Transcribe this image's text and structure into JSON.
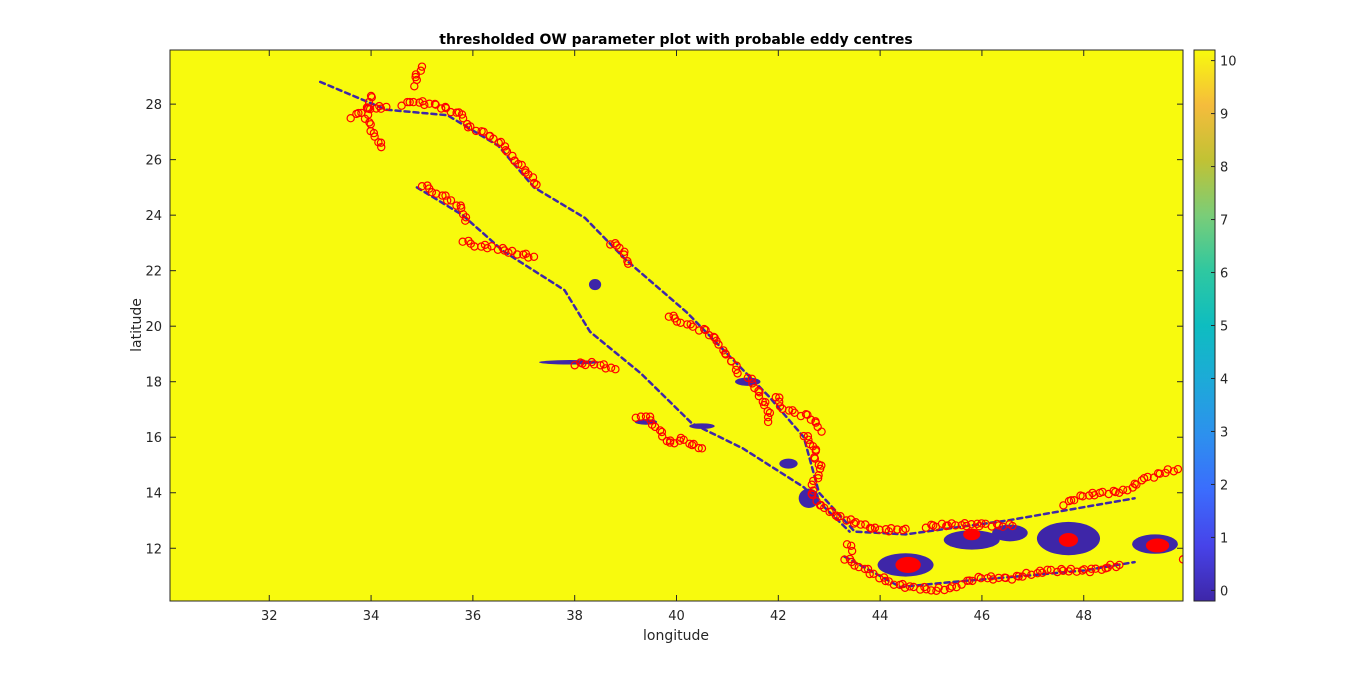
{
  "chart_data": {
    "type": "heatmap",
    "title": "thresholded OW parameter plot with probable eddy centres",
    "xlabel": "longitude",
    "ylabel": "latitude",
    "xlim": [
      30.05,
      49.95
    ],
    "ylim": [
      10.1,
      29.95
    ],
    "xticks": [
      32,
      34,
      36,
      38,
      40,
      42,
      44,
      46,
      48
    ],
    "yticks": [
      12,
      14,
      16,
      18,
      20,
      22,
      24,
      26,
      28
    ],
    "background_value": 10,
    "feature_value": 0,
    "colorbar": {
      "colormap": "parula",
      "clim": [
        -0.2,
        10.2
      ],
      "ticks": [
        0,
        1,
        2,
        3,
        4,
        5,
        6,
        7,
        8,
        9,
        10
      ]
    },
    "colors": {
      "background": "#f8fa0d",
      "feature": "#3e26a8",
      "eddy_centre_marker": "#ff0000"
    },
    "marker": "circle",
    "feature_blobs": [
      {
        "lon": 44.5,
        "lat": 11.4,
        "rx": 0.55,
        "ry": 0.42
      },
      {
        "lon": 45.8,
        "lat": 12.3,
        "rx": 0.55,
        "ry": 0.35
      },
      {
        "lon": 46.55,
        "lat": 12.55,
        "rx": 0.35,
        "ry": 0.3
      },
      {
        "lon": 47.7,
        "lat": 12.35,
        "rx": 0.62,
        "ry": 0.6
      },
      {
        "lon": 49.4,
        "lat": 12.15,
        "rx": 0.45,
        "ry": 0.35
      },
      {
        "lon": 42.2,
        "lat": 15.05,
        "rx": 0.18,
        "ry": 0.18
      },
      {
        "lon": 39.4,
        "lat": 16.55,
        "rx": 0.22,
        "ry": 0.1
      },
      {
        "lon": 40.5,
        "lat": 16.4,
        "rx": 0.25,
        "ry": 0.1
      },
      {
        "lon": 38.4,
        "lat": 21.5,
        "rx": 0.12,
        "ry": 0.2
      },
      {
        "lon": 37.9,
        "lat": 18.7,
        "rx": 0.6,
        "ry": 0.08
      },
      {
        "lon": 41.4,
        "lat": 18.0,
        "rx": 0.25,
        "ry": 0.15
      },
      {
        "lon": 42.6,
        "lat": 13.8,
        "rx": 0.2,
        "ry": 0.35
      }
    ],
    "feature_lines": [
      {
        "points": [
          [
            33.0,
            28.8
          ],
          [
            34.3,
            27.8
          ],
          [
            35.5,
            27.6
          ],
          [
            36.5,
            26.5
          ],
          [
            37.2,
            25.0
          ],
          [
            38.2,
            23.9
          ],
          [
            39.0,
            22.4
          ],
          [
            40.2,
            20.5
          ],
          [
            41.0,
            19.0
          ],
          [
            41.8,
            17.5
          ],
          [
            42.5,
            16.0
          ],
          [
            42.8,
            14.0
          ],
          [
            43.5,
            12.6
          ],
          [
            44.5,
            12.5
          ],
          [
            46.5,
            13.0
          ],
          [
            49.0,
            13.8
          ]
        ]
      },
      {
        "points": [
          [
            34.9,
            25.0
          ],
          [
            35.8,
            24.0
          ],
          [
            36.6,
            22.7
          ],
          [
            37.8,
            21.3
          ],
          [
            38.3,
            19.8
          ],
          [
            39.3,
            18.3
          ],
          [
            40.3,
            16.5
          ],
          [
            41.3,
            15.6
          ],
          [
            42.5,
            14.2
          ],
          [
            43.4,
            12.6
          ]
        ]
      },
      {
        "points": [
          [
            43.3,
            11.7
          ],
          [
            44.4,
            10.6
          ],
          [
            45.5,
            10.8
          ],
          [
            46.8,
            11.0
          ],
          [
            48.0,
            11.2
          ],
          [
            49.0,
            11.5
          ]
        ]
      }
    ],
    "eddy_centre_tracks": [
      {
        "points": [
          [
            34.0,
            28.35
          ],
          [
            33.9,
            27.5
          ],
          [
            34.1,
            26.8
          ],
          [
            34.2,
            26.45
          ]
        ]
      },
      {
        "points": [
          [
            33.6,
            27.55
          ],
          [
            34.0,
            27.85
          ],
          [
            34.3,
            27.9
          ]
        ]
      },
      {
        "points": [
          [
            34.6,
            28.0
          ],
          [
            34.85,
            28.1
          ],
          [
            35.3,
            27.95
          ],
          [
            35.5,
            27.8
          ],
          [
            35.8,
            27.6
          ],
          [
            35.9,
            27.2
          ],
          [
            36.3,
            26.9
          ],
          [
            36.6,
            26.5
          ],
          [
            36.75,
            26.1
          ],
          [
            36.95,
            25.75
          ],
          [
            37.1,
            25.45
          ],
          [
            37.25,
            25.1
          ]
        ]
      },
      {
        "points": [
          [
            34.85,
            28.7
          ],
          [
            34.9,
            29.1
          ],
          [
            35.0,
            29.35
          ]
        ]
      },
      {
        "points": [
          [
            35.0,
            25.1
          ],
          [
            35.3,
            24.8
          ],
          [
            35.6,
            24.5
          ],
          [
            35.8,
            24.2
          ],
          [
            35.85,
            23.8
          ]
        ]
      },
      {
        "points": [
          [
            35.8,
            23.1
          ],
          [
            36.05,
            22.9
          ],
          [
            36.4,
            22.85
          ],
          [
            36.8,
            22.65
          ],
          [
            37.2,
            22.5
          ]
        ]
      },
      {
        "points": [
          [
            38.7,
            23.0
          ],
          [
            38.9,
            22.85
          ],
          [
            39.0,
            22.55
          ],
          [
            39.05,
            22.25
          ]
        ]
      },
      {
        "points": [
          [
            39.85,
            20.4
          ],
          [
            40.1,
            20.15
          ],
          [
            40.35,
            19.95
          ],
          [
            40.6,
            19.8
          ],
          [
            40.8,
            19.45
          ],
          [
            40.95,
            19.05
          ],
          [
            41.05,
            18.8
          ],
          [
            41.15,
            18.6
          ],
          [
            41.2,
            18.3
          ]
        ]
      },
      {
        "points": [
          [
            41.4,
            18.2
          ],
          [
            41.55,
            17.8
          ],
          [
            41.65,
            17.45
          ],
          [
            41.75,
            17.1
          ],
          [
            41.85,
            16.85
          ],
          [
            41.8,
            16.55
          ]
        ]
      },
      {
        "points": [
          [
            41.95,
            17.5
          ],
          [
            42.1,
            17.05
          ],
          [
            42.35,
            16.85
          ],
          [
            42.6,
            16.75
          ],
          [
            42.75,
            16.5
          ],
          [
            42.85,
            16.2
          ]
        ]
      },
      {
        "points": [
          [
            38.0,
            18.65
          ],
          [
            38.4,
            18.65
          ],
          [
            38.8,
            18.45
          ]
        ]
      },
      {
        "points": [
          [
            39.4,
            16.8
          ],
          [
            39.6,
            16.4
          ],
          [
            39.75,
            16.0
          ],
          [
            39.9,
            15.75
          ],
          [
            40.1,
            15.95
          ],
          [
            40.3,
            15.75
          ],
          [
            40.5,
            15.6
          ]
        ]
      },
      {
        "points": [
          [
            42.5,
            16.1
          ],
          [
            42.7,
            15.7
          ],
          [
            42.75,
            15.2
          ],
          [
            42.85,
            14.8
          ],
          [
            42.7,
            14.4
          ],
          [
            42.65,
            14.0
          ],
          [
            42.8,
            13.6
          ],
          [
            43.1,
            13.2
          ],
          [
            43.4,
            13.0
          ],
          [
            43.7,
            12.8
          ],
          [
            44.0,
            12.65
          ],
          [
            44.5,
            12.7
          ]
        ]
      },
      {
        "points": [
          [
            44.9,
            12.8
          ],
          [
            45.5,
            12.85
          ],
          [
            46.1,
            12.85
          ],
          [
            46.6,
            12.8
          ]
        ]
      },
      {
        "points": [
          [
            47.6,
            13.6
          ],
          [
            48.0,
            13.9
          ],
          [
            48.4,
            14.0
          ],
          [
            48.8,
            14.05
          ],
          [
            49.2,
            14.5
          ],
          [
            49.6,
            14.75
          ],
          [
            49.85,
            14.85
          ]
        ]
      },
      {
        "points": [
          [
            43.3,
            11.65
          ],
          [
            43.6,
            11.35
          ],
          [
            43.9,
            11.05
          ],
          [
            44.2,
            10.75
          ],
          [
            44.6,
            10.6
          ],
          [
            45.1,
            10.5
          ],
          [
            45.5,
            10.6
          ]
        ]
      },
      {
        "points": [
          [
            45.6,
            10.75
          ],
          [
            46.0,
            10.95
          ],
          [
            46.5,
            10.9
          ],
          [
            46.9,
            11.05
          ],
          [
            47.3,
            11.2
          ],
          [
            47.7,
            11.2
          ],
          [
            48.1,
            11.2
          ],
          [
            48.4,
            11.3
          ],
          [
            48.7,
            11.4
          ]
        ]
      },
      {
        "points": [
          [
            43.35,
            12.2
          ],
          [
            43.45,
            11.9
          ]
        ]
      },
      {
        "points": [
          [
            39.3,
            16.8
          ],
          [
            39.2,
            16.7
          ]
        ]
      },
      {
        "points": [
          [
            49.95,
            11.6
          ]
        ]
      }
    ],
    "eddy_centre_clusters": [
      {
        "lon": 44.55,
        "lat": 11.4,
        "rx": 0.2,
        "ry": 0.2
      },
      {
        "lon": 45.8,
        "lat": 12.5,
        "rx": 0.12,
        "ry": 0.12
      },
      {
        "lon": 47.7,
        "lat": 12.3,
        "rx": 0.14,
        "ry": 0.16
      },
      {
        "lon": 49.45,
        "lat": 12.1,
        "rx": 0.18,
        "ry": 0.16
      }
    ]
  }
}
